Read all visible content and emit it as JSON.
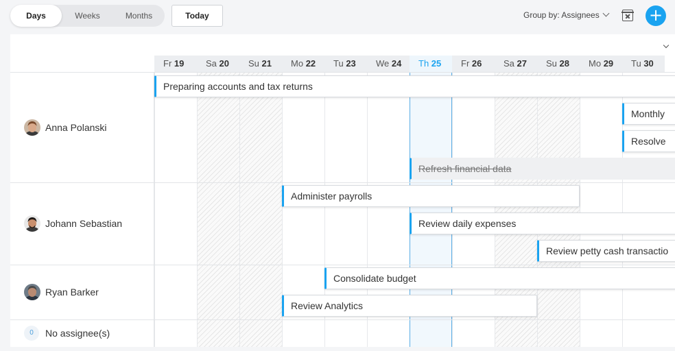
{
  "toolbar": {
    "views": [
      "Days",
      "Weeks",
      "Months"
    ],
    "active_view": "Days",
    "today_label": "Today",
    "group_by_label": "Group by: Assignees",
    "add_label": "+"
  },
  "days": [
    {
      "dow": "Fr",
      "num": "19"
    },
    {
      "dow": "Sa",
      "num": "20"
    },
    {
      "dow": "Su",
      "num": "21"
    },
    {
      "dow": "Mo",
      "num": "22"
    },
    {
      "dow": "Tu",
      "num": "23"
    },
    {
      "dow": "We",
      "num": "24"
    },
    {
      "dow": "Th",
      "num": "25"
    },
    {
      "dow": "Fr",
      "num": "26"
    },
    {
      "dow": "Sa",
      "num": "27"
    },
    {
      "dow": "Su",
      "num": "28"
    },
    {
      "dow": "Mo",
      "num": "29"
    },
    {
      "dow": "Tu",
      "num": "30"
    }
  ],
  "weekend_days": [
    1,
    2,
    8,
    9
  ],
  "today_index": 6,
  "assignees": [
    {
      "name": "Anna Polanski"
    },
    {
      "name": "Johann Sebastian"
    },
    {
      "name": "Ryan Barker"
    },
    {
      "name": "No assignee(s)",
      "count": "0"
    }
  ],
  "tasks": [
    {
      "title": "Preparing accounts and tax returns",
      "assignee": 0,
      "start_day": 0,
      "done": false
    },
    {
      "title": "Monthly",
      "assignee": 0,
      "start_day": 11,
      "done": false
    },
    {
      "title": "Resolve",
      "assignee": 0,
      "start_day": 11,
      "done": false
    },
    {
      "title": "Refresh financial data",
      "assignee": 0,
      "start_day": 6,
      "done": true
    },
    {
      "title": "Administer payrolls",
      "assignee": 1,
      "start_day": 3,
      "end_day": 10,
      "done": false
    },
    {
      "title": "Review daily expenses",
      "assignee": 1,
      "start_day": 6,
      "done": false
    },
    {
      "title": "Review petty cash transactio",
      "assignee": 1,
      "start_day": 9,
      "done": false
    },
    {
      "title": "Consolidate budget",
      "assignee": 2,
      "start_day": 4,
      "done": false
    },
    {
      "title": "Review Analytics",
      "assignee": 2,
      "start_day": 3,
      "end_day": 9,
      "done": false
    }
  ]
}
